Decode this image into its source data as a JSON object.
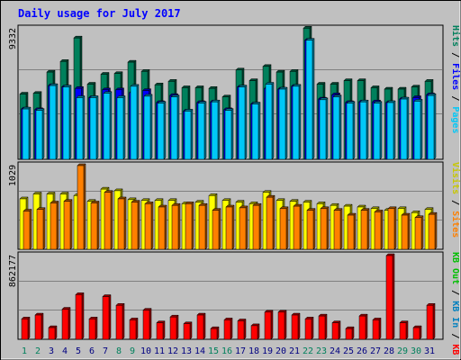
{
  "title": "Daily usage for July 2017",
  "colors": {
    "background": "#C0C0C0",
    "hits": "#00805C",
    "files": "#0000FF",
    "pages": "#00C8F8",
    "visits": "#FFFF00",
    "sites": "#FF8000",
    "kbin": "#0080C0",
    "kbout": "#00C000",
    "kbf": "#FF0000",
    "weekend_label": "#00805C",
    "weekday_label": "#000080",
    "title": "#0000FF"
  },
  "chart_data": [
    {
      "type": "bar",
      "panel": "hits-files-pages",
      "title": "Daily usage for July 2017",
      "ylabel_parts": [
        "Pages",
        "Files",
        "Hits"
      ],
      "max_label": "9332",
      "ylim": [
        0,
        9332
      ],
      "categories": [
        "1",
        "2",
        "3",
        "4",
        "5",
        "6",
        "7",
        "8",
        "9",
        "10",
        "11",
        "12",
        "13",
        "14",
        "15",
        "16",
        "17",
        "18",
        "19",
        "20",
        "21",
        "22",
        "23",
        "24",
        "25",
        "26",
        "27",
        "28",
        "29",
        "30",
        "31"
      ],
      "weekend": [
        "1",
        "2",
        "8",
        "9",
        "15",
        "16",
        "22",
        "23",
        "29",
        "30"
      ],
      "series": [
        {
          "name": "Hits",
          "values": [
            4600,
            4650,
            6150,
            6900,
            8560,
            5300,
            6000,
            6050,
            6850,
            6200,
            5250,
            5500,
            5050,
            5050,
            5000,
            4400,
            6300,
            5550,
            6550,
            6150,
            6200,
            9250,
            5300,
            5300,
            5550,
            5550,
            5050,
            4950,
            4950,
            5100,
            5500
          ]
        },
        {
          "name": "Files",
          "values": [
            3550,
            3500,
            5200,
            5100,
            5000,
            4350,
            4900,
            4900,
            4700,
            4850,
            4000,
            4500,
            3400,
            4000,
            4050,
            3500,
            5100,
            3900,
            5000,
            4950,
            5150,
            8400,
            4250,
            4550,
            4000,
            4050,
            4050,
            4000,
            4250,
            4350,
            4550
          ]
        },
        {
          "name": "Pages",
          "values": [
            3550,
            3450,
            5200,
            5100,
            4350,
            4350,
            4650,
            4350,
            5150,
            4450,
            3950,
            4400,
            3400,
            3950,
            4050,
            3450,
            5100,
            3900,
            5300,
            4950,
            5150,
            8400,
            4200,
            4400,
            3950,
            4050,
            3950,
            4000,
            4250,
            4100,
            4500
          ]
        }
      ]
    },
    {
      "type": "bar",
      "panel": "visits-sites",
      "ylabel_parts": [
        "Sites",
        "Visits"
      ],
      "max_label": "1029",
      "ylim": [
        0,
        1029
      ],
      "categories": [
        "1",
        "2",
        "3",
        "4",
        "5",
        "6",
        "7",
        "8",
        "9",
        "10",
        "11",
        "12",
        "13",
        "14",
        "15",
        "16",
        "17",
        "18",
        "19",
        "20",
        "21",
        "22",
        "23",
        "24",
        "25",
        "26",
        "27",
        "28",
        "29",
        "30",
        "31"
      ],
      "series": [
        {
          "name": "Visits",
          "values": [
            620,
            680,
            680,
            680,
            660,
            590,
            740,
            720,
            610,
            600,
            600,
            600,
            560,
            580,
            660,
            600,
            580,
            560,
            700,
            600,
            590,
            580,
            560,
            540,
            530,
            520,
            500,
            480,
            500,
            450,
            490
          ]
        },
        {
          "name": "Sites",
          "values": [
            470,
            490,
            570,
            590,
            1029,
            570,
            700,
            620,
            580,
            560,
            520,
            540,
            560,
            540,
            480,
            520,
            510,
            540,
            640,
            500,
            530,
            480,
            500,
            480,
            420,
            480,
            460,
            500,
            420,
            390,
            430
          ]
        }
      ]
    },
    {
      "type": "bar",
      "panel": "kbytes",
      "ylabel_parts": [
        "KB F",
        "KB In",
        "KB Out"
      ],
      "max_label": "862177",
      "ylim": [
        0,
        862177
      ],
      "categories": [
        "1",
        "2",
        "3",
        "4",
        "5",
        "6",
        "7",
        "8",
        "9",
        "10",
        "11",
        "12",
        "13",
        "14",
        "15",
        "16",
        "17",
        "18",
        "19",
        "20",
        "21",
        "22",
        "23",
        "24",
        "25",
        "26",
        "27",
        "28",
        "29",
        "30",
        "31"
      ],
      "series": [
        {
          "name": "KB F",
          "values": [
            210000,
            250000,
            120000,
            310000,
            460000,
            210000,
            440000,
            350000,
            200000,
            300000,
            170000,
            230000,
            160000,
            250000,
            110000,
            200000,
            190000,
            140000,
            280000,
            280000,
            250000,
            210000,
            240000,
            170000,
            110000,
            240000,
            200000,
            862177,
            170000,
            120000,
            350000
          ]
        }
      ]
    }
  ]
}
